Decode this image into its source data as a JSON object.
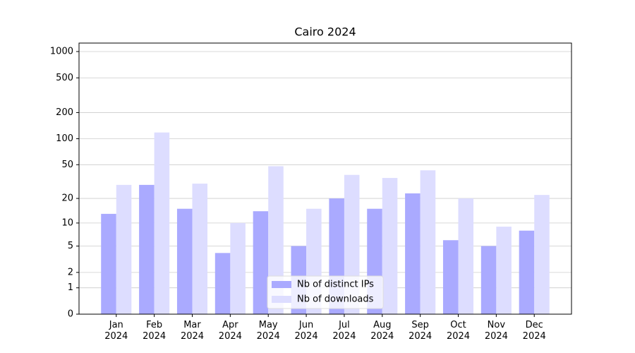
{
  "chart_data": {
    "type": "bar",
    "title": "Cairo 2024",
    "categories": [
      "Jan\n2024",
      "Feb\n2024",
      "Mar\n2024",
      "Apr\n2024",
      "May\n2024",
      "Jun\n2024",
      "Jul\n2024",
      "Aug\n2024",
      "Sep\n2024",
      "Oct\n2024",
      "Nov\n2024",
      "Dec\n2024"
    ],
    "series": [
      {
        "name": "Nb of distinct IPs",
        "color": "#aaaaff",
        "values": [
          13,
          29,
          15,
          4,
          14,
          5,
          20,
          15,
          23,
          6,
          5,
          8
        ]
      },
      {
        "name": "Nb of downloads",
        "color": "#ddddff",
        "values": [
          29,
          118,
          30,
          10,
          48,
          15,
          38,
          35,
          43,
          20,
          9,
          22
        ]
      }
    ],
    "ylim": [
      0,
      1250
    ],
    "yticks": [
      0,
      1,
      2,
      5,
      10,
      20,
      50,
      100,
      200,
      500,
      1000
    ],
    "yscale": "log1p",
    "grid": true,
    "legend": "lower center"
  }
}
